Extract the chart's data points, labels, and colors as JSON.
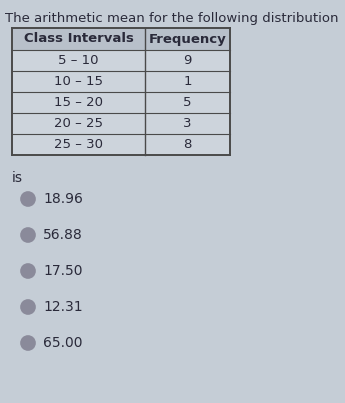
{
  "title": "The arithmetic mean for the following distribution",
  "col_headers": [
    "Class Intervals",
    "Frequency"
  ],
  "rows": [
    [
      "5 – 10",
      "9"
    ],
    [
      "10 – 15",
      "1"
    ],
    [
      "15 – 20",
      "5"
    ],
    [
      "20 – 25",
      "3"
    ],
    [
      "25 – 30",
      "8"
    ]
  ],
  "is_label": "is",
  "options": [
    "18.96",
    "56.88",
    "17.50",
    "12.31",
    "65.00"
  ],
  "bg_color": "#c5cdd6",
  "table_cell_color": "#cdd4dc",
  "table_header_color": "#b8c0ca",
  "table_border_color": "#4a4a4a",
  "text_color": "#2a2a3a",
  "title_fontsize": 9.5,
  "option_fontsize": 10,
  "table_fontsize": 9.5,
  "circle_color": "#8a8a9a",
  "circle_fill": "#d0d5dc"
}
